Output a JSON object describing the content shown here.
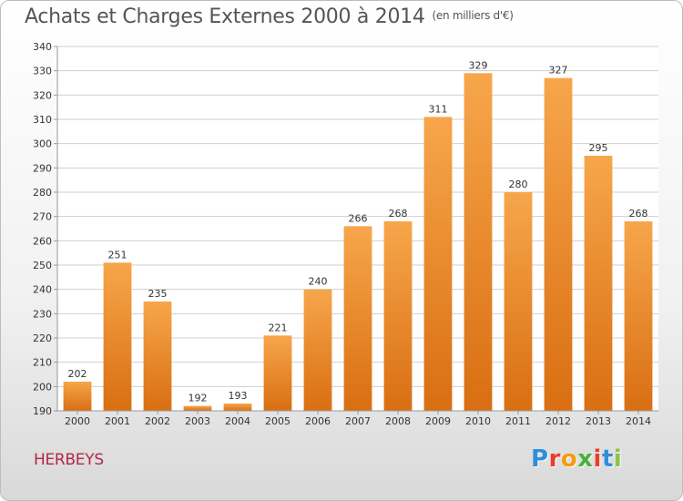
{
  "title": "Achats et Charges Externes 2000 à 2014",
  "unit": "(en milliers d'€)",
  "commune": "HERBEYS",
  "logo": {
    "text": "Proxiti",
    "colors": [
      "#2f8fd8",
      "#e5402a",
      "#f39c12",
      "#4cae3c",
      "#e5402a",
      "#2f8fd8",
      "#8bc34a"
    ]
  },
  "colors": {
    "bar_top": "#f7a64b",
    "bar_bottom": "#d96e12",
    "grid": "#cfcfcf",
    "title": "#555555",
    "commune": "#b0274a"
  },
  "chart_data": {
    "type": "bar",
    "categories": [
      "2000",
      "2001",
      "2002",
      "2003",
      "2004",
      "2005",
      "2006",
      "2007",
      "2008",
      "2009",
      "2010",
      "2011",
      "2012",
      "2013",
      "2014"
    ],
    "values": [
      202,
      251,
      235,
      192,
      193,
      221,
      240,
      266,
      268,
      311,
      329,
      280,
      327,
      295,
      268
    ],
    "ylim": [
      190,
      340
    ],
    "ytick_step": 10,
    "grid": true,
    "data_labels": true
  }
}
